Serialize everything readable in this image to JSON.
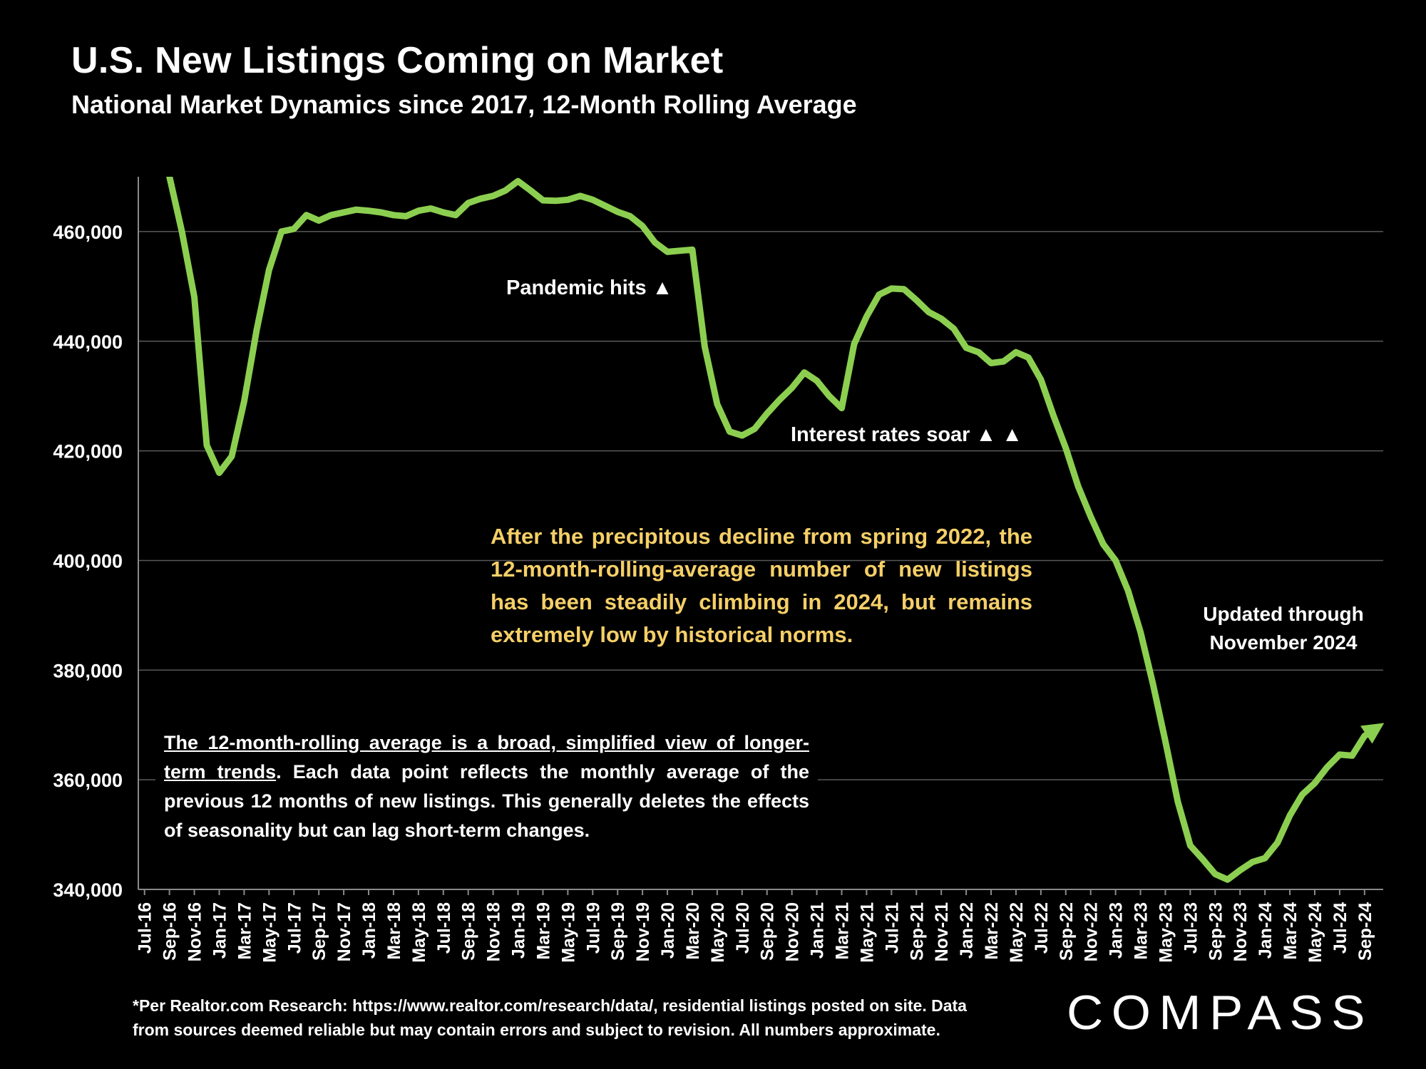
{
  "title": "U.S. New Listings Coming on Market",
  "subtitle": "National Market Dynamics since 2017, 12-Month Rolling Average",
  "annotations": {
    "pandemic": "Pandemic hits ▲",
    "rates": "Interest rates soar ▲ ▲",
    "callout": "After the precipitous decline from spring 2022, the 12-month-rolling-average number of new listings has been steadily climbing in 2024, but remains extremely low by historical norms.",
    "note_underlined": "The 12-month-rolling average is a broad, simplified view of longer-term trends",
    "note_rest": ". Each data point reflects the monthly average of the previous 12 months of new listings. This generally deletes the effects of seasonality but can lag short-term changes.",
    "updated_line1": "Updated through",
    "updated_line2": "November 2024"
  },
  "footnote": {
    "line1": "*Per Realtor.com Research:  https://www.realtor.com/research/data/, residential listings posted on site. Data",
    "line2": "from sources deemed reliable but may contain errors and subject to revision. All numbers approximate."
  },
  "logo": {
    "text": "COMPASS"
  },
  "colors": {
    "line": "#8ccf50",
    "callout": "#f5cf67",
    "grid": "#595959",
    "background": "#000000"
  },
  "chart_data": {
    "type": "line",
    "title": "U.S. New Listings Coming on Market",
    "subtitle": "National Market Dynamics since 2017, 12-Month Rolling Average",
    "xlabel": "",
    "ylabel": "",
    "ylim": [
      340000,
      470000
    ],
    "yticks": [
      340000,
      360000,
      380000,
      400000,
      420000,
      440000,
      460000
    ],
    "ytick_labels": [
      "340,000",
      "360,000",
      "380,000",
      "400,000",
      "420,000",
      "440,000",
      "460,000"
    ],
    "xtick_labels": [
      "Jul-16",
      "Sep-16",
      "Nov-16",
      "Jan-17",
      "Mar-17",
      "May-17",
      "Jul-17",
      "Sep-17",
      "Nov-17",
      "Jan-18",
      "Mar-18",
      "May-18",
      "Jul-18",
      "Sep-18",
      "Nov-18",
      "Jan-19",
      "Mar-19",
      "May-19",
      "Jul-19",
      "Sep-19",
      "Nov-19",
      "Jan-20",
      "Mar-20",
      "May-20",
      "Jul-20",
      "Sep-20",
      "Nov-20",
      "Jan-21",
      "Mar-21",
      "May-21",
      "Jul-21",
      "Sep-21",
      "Nov-21",
      "Jan-22",
      "Mar-22",
      "May-22",
      "Jul-22",
      "Sep-22",
      "Nov-22",
      "Jan-23",
      "Mar-23",
      "May-23",
      "Jul-23",
      "Sep-23",
      "Nov-23",
      "Jan-24",
      "Mar-24",
      "May-24",
      "Jul-24",
      "Sep-24"
    ],
    "grid": true,
    "series": [
      {
        "name": "New listings (12-month rolling average)",
        "values": [
          null,
          null,
          470000,
          460000,
          448000,
          421000,
          416000,
          419000,
          429000,
          442000,
          453000,
          460000,
          460500,
          463000,
          462000,
          463000,
          463500,
          464000,
          463800,
          463500,
          463000,
          462800,
          463800,
          464200,
          463500,
          463000,
          465200,
          466000,
          466500,
          467500,
          469200,
          467500,
          465700,
          465600,
          465800,
          466500,
          465800,
          464700,
          463600,
          462800,
          461000,
          458000,
          456300,
          456500,
          456700,
          439000,
          428500,
          423500,
          422800,
          424000,
          426800,
          429300,
          431500,
          434300,
          432800,
          430000,
          427800,
          439500,
          444500,
          448500,
          449600,
          449500,
          447500,
          445300,
          444100,
          442300,
          438800,
          438000,
          436000,
          436300,
          438000,
          437000,
          433000,
          426500,
          420500,
          413500,
          408000,
          403000,
          400000,
          394500,
          387000,
          377500,
          367000,
          356000,
          348000,
          345500,
          342800,
          341800,
          343500,
          345000,
          345700,
          348500,
          353500,
          357300,
          359400,
          362300,
          364600,
          364400,
          368000,
          369500
        ]
      }
    ]
  }
}
